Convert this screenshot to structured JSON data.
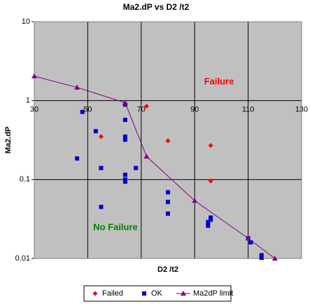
{
  "chart_data": {
    "type": "scatter",
    "title": "Ma2.dP vs D2 /t2",
    "x_label": "D2 /t2",
    "y_label": "Ma2.dP",
    "xlim": [
      30,
      130
    ],
    "xticks": [
      30,
      50,
      70,
      90,
      110,
      130
    ],
    "ylim": [
      0.01,
      10
    ],
    "yticks": [
      0.01,
      0.1,
      1,
      10
    ],
    "y_scale": "log",
    "grid": true,
    "annotations": [
      "Failure",
      "No Failure"
    ],
    "series": [
      {
        "name": "Failed",
        "color": "#ff0000",
        "marker": "diamond",
        "line": false,
        "x": [
          72,
          55,
          80,
          96,
          96
        ],
        "values": [
          0.85,
          0.35,
          0.31,
          0.27,
          0.096
        ]
      },
      {
        "name": "OK",
        "color": "#0000cc",
        "marker": "square",
        "line": false,
        "x": [
          48,
          53,
          55,
          46,
          55,
          64,
          64,
          64,
          64,
          64,
          64,
          64,
          68,
          80,
          80,
          80,
          95,
          95,
          96,
          96,
          110,
          111,
          115,
          115
        ],
        "values": [
          0.72,
          0.41,
          0.14,
          0.185,
          0.045,
          0.89,
          0.57,
          0.35,
          0.32,
          0.115,
          0.1,
          0.094,
          0.14,
          0.069,
          0.052,
          0.037,
          0.029,
          0.026,
          0.033,
          0.031,
          0.018,
          0.016,
          0.011,
          0.0102
        ]
      },
      {
        "name": "Ma2dP limit",
        "color": "#800080",
        "marker": "triangle",
        "line": true,
        "x": [
          30,
          46,
          64,
          72,
          90,
          110,
          120
        ],
        "values": [
          2.04,
          1.47,
          0.94,
          0.196,
          0.054,
          0.018,
          0.01
        ]
      }
    ]
  }
}
